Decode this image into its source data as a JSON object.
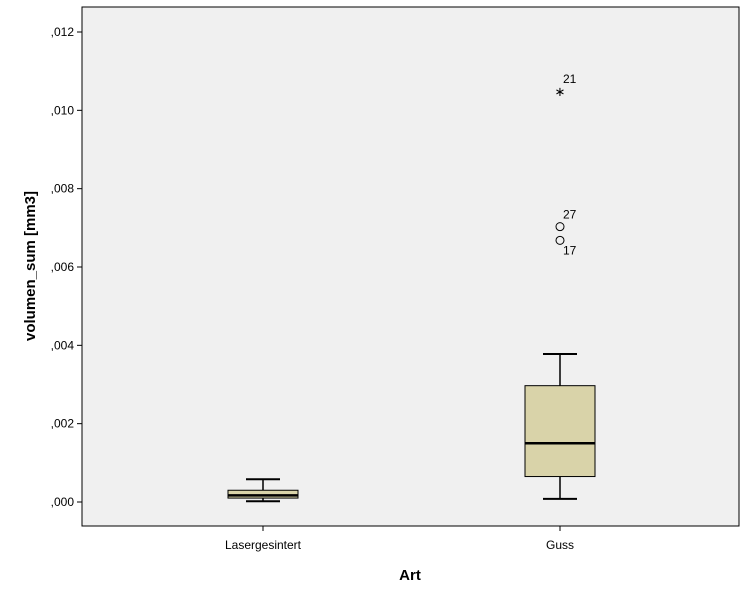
{
  "chart_data": {
    "type": "boxplot",
    "xlabel": "Art",
    "ylabel": "volumen_sum [mm3]",
    "ylim": [
      -0.0006,
      0.0122
    ],
    "yticks": [
      0.0,
      0.002,
      0.004,
      0.006,
      0.008,
      0.01,
      0.012
    ],
    "ytick_labels": [
      ",000",
      ",002",
      ",004",
      ",006",
      ",008",
      ",010",
      ",012"
    ],
    "grid": false,
    "colors": {
      "plot_bg": "#f0f0f0",
      "box_fill": "#d9d3a9",
      "stroke": "#000000"
    },
    "categories": [
      "Lasergesintert",
      "Guss"
    ],
    "boxes": [
      {
        "category": "Lasergesintert",
        "whisker_low": 2e-05,
        "q1": 0.0001,
        "median": 0.00017,
        "q3": 0.0003,
        "whisker_high": 0.00058,
        "outliers": []
      },
      {
        "category": "Guss",
        "whisker_low": 8e-05,
        "q1": 0.00065,
        "median": 0.0015,
        "q3": 0.00297,
        "whisker_high": 0.00378,
        "outliers": [
          {
            "value": 0.0105,
            "label": "21",
            "marker": "star"
          },
          {
            "value": 0.00703,
            "label": "27",
            "marker": "circle"
          },
          {
            "value": 0.00668,
            "label": "17",
            "marker": "circle"
          }
        ]
      }
    ]
  }
}
